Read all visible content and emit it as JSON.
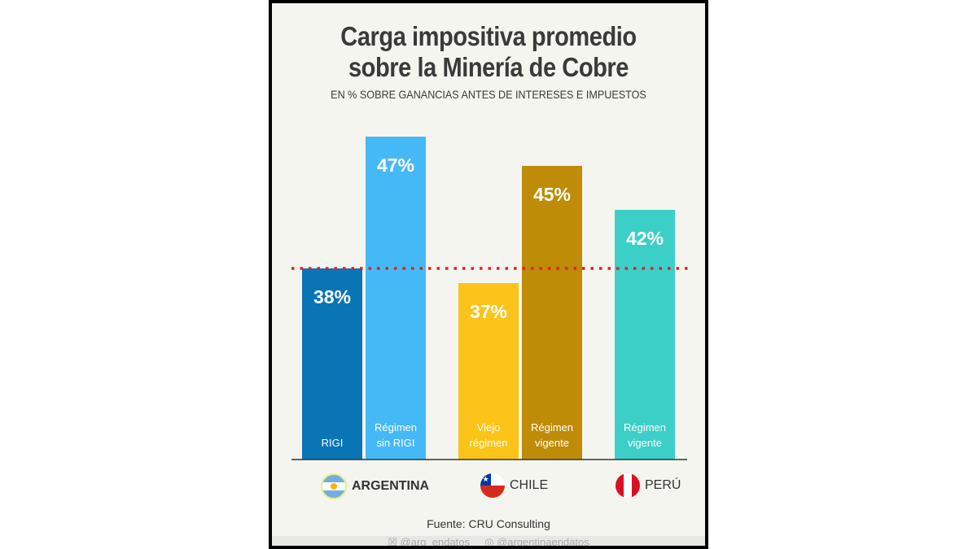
{
  "chart_data": {
    "type": "bar",
    "title": "Carga impositiva promedio sobre la Minería de Cobre",
    "title_lines": [
      "Carga impositiva promedio",
      "sobre la Minería de Cobre"
    ],
    "subtitle": "EN % SOBRE GANANCIAS ANTES DE INTERESES E IMPUESTOS",
    "categories": [
      "RIGI",
      "Régimen sin RIGI",
      "Viejo régimen",
      "Régimen vigente",
      "Régimen vigente"
    ],
    "category_lines": [
      [
        "RIGI"
      ],
      [
        "Régimen",
        "sin RIGI"
      ],
      [
        "Viejo",
        "régimen"
      ],
      [
        "Régimen",
        "vigente"
      ],
      [
        "Régimen",
        "vigente"
      ]
    ],
    "groups": [
      "ARGENTINA",
      "ARGENTINA",
      "CHILE",
      "CHILE",
      "PERÚ"
    ],
    "values": [
      38,
      47,
      37,
      45,
      42
    ],
    "data_labels": [
      "38%",
      "47%",
      "37%",
      "45%",
      "42%"
    ],
    "colors": [
      "#0a75b5",
      "#45b9f5",
      "#fcc419",
      "#be8c06",
      "#3ccfc8"
    ],
    "reference_line": {
      "value": 38,
      "style": "dotted",
      "color": "#e02020"
    },
    "ylim": [
      25,
      47
    ],
    "grid": false,
    "legend": "none"
  },
  "countries": [
    {
      "name": "ARGENTINA",
      "flag": "argentina-flag"
    },
    {
      "name": "CHILE",
      "flag": "chile-flag"
    },
    {
      "name": "PERÚ",
      "flag": "peru-flag"
    }
  ],
  "source": "Fuente: CRU Consulting",
  "footer": {
    "x_handle": "@arg_endatos",
    "instagram_handle": "@argentinaendatos"
  }
}
